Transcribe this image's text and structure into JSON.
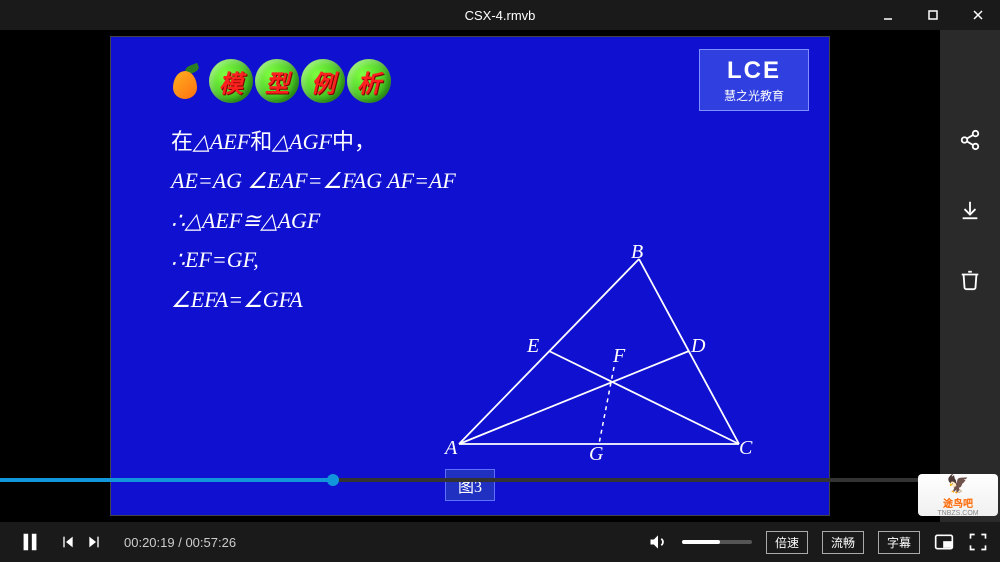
{
  "window": {
    "title": "CSX-4.rmvb",
    "minimize": "−",
    "maximize": "☐",
    "close": "✕"
  },
  "slide": {
    "header_chars": [
      "模",
      "型",
      "例",
      "析"
    ],
    "logo_main": "LCE",
    "logo_sub": "慧之光教育",
    "math_lines": {
      "l1_pre": "在",
      "l1_mid": "△AEF",
      "l1_and": "和",
      "l1_end": "△AGF",
      "l1_post": "中，",
      "l2": "AE=AG    ∠EAF=∠FAG    AF=AF",
      "l3": "∴△AEF≅△AGF",
      "l4": "∴EF=GF,",
      "l5": "  ∠EFA=∠GFA"
    },
    "triangle": {
      "vertices": {
        "A": "A",
        "B": "B",
        "C": "C",
        "D": "D",
        "E": "E",
        "F": "F",
        "G": "G"
      },
      "stroke": "#ffffff",
      "stroke_width": 1.8,
      "dash": "4,4"
    },
    "fig_label": "图3",
    "bg_color": "#1010d0"
  },
  "sidebar": {
    "share": "share",
    "download": "download",
    "delete": "delete"
  },
  "controls": {
    "play_state": "playing",
    "current_time": "00:20:19",
    "total_time": "00:57:26",
    "time_display": "00:20:19 / 00:57:26",
    "progress_pct": 35.4,
    "volume_pct": 55,
    "speed_label": "倍速",
    "quality_label": "流畅",
    "subtitle_label": "字幕"
  },
  "watermark": {
    "name": "途鸟吧",
    "url": "TNBZS.COM"
  },
  "colors": {
    "accent": "#1296db",
    "panel": "#2a2a2a",
    "bar": "#1a1a1a"
  }
}
